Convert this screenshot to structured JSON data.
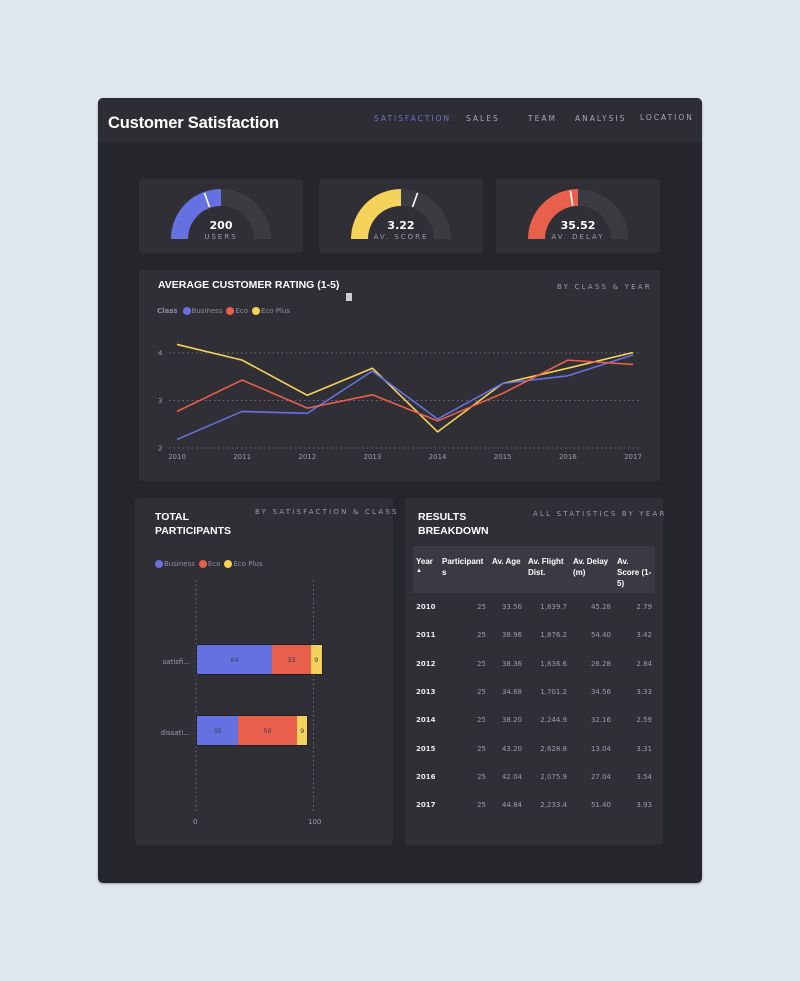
{
  "header": {
    "title": "Customer Satisfaction",
    "nav": [
      {
        "label": "SATISFACTION",
        "active": true
      },
      {
        "label": "SALES",
        "active": false
      },
      {
        "label": "TEAM",
        "active": false
      },
      {
        "label": "ANALYSIS",
        "active": false
      },
      {
        "label": "LOCATION",
        "active": false
      }
    ]
  },
  "colors": {
    "business": "#6571e0",
    "eco": "#e8604c",
    "eco_plus": "#f5d35a",
    "accent": "#6a75d9",
    "gauge_track": "#3b3c42"
  },
  "gauges": [
    {
      "value": "200",
      "label": "USERS",
      "color": "#6571e0",
      "fill_pct": 50,
      "marker_pct": 39
    },
    {
      "value": "3.22",
      "label": "AV. SCORE",
      "color": "#f5d35a",
      "fill_pct": 50,
      "marker_pct": 61
    },
    {
      "value": "35.52",
      "label": "AV. DELAY",
      "color": "#e8604c",
      "fill_pct": 50,
      "marker_pct": 45
    }
  ],
  "rating_chart": {
    "title": "AVERAGE CUSTOMER RATING (1-5)",
    "subtitle": "BY CLASS & YEAR",
    "legend_title": "Class",
    "legend": [
      "Business",
      "Eco",
      "Eco Plus"
    ]
  },
  "participants_chart": {
    "title_line1": "TOTAL",
    "title_line2": "PARTICIPANTS",
    "subtitle": "BY SATISFACTION & CLASS",
    "legend": [
      "Business",
      "Eco",
      "Eco Plus"
    ],
    "categories": [
      "satisfi...",
      "dissati..."
    ],
    "axis_ticks": [
      "0",
      "100"
    ]
  },
  "results": {
    "title_line1": "RESULTS",
    "title_line2": "BREAKDOWN",
    "subtitle": "ALL STATISTICS BY YEAR",
    "columns": [
      "Year",
      "Participant s",
      "Av. Age",
      "Av. Flight Dist.",
      "Av. Delay (m)",
      "Av. Score (1-5)"
    ],
    "sort_indicator": "▲",
    "rows": [
      [
        "2010",
        "25",
        "33.56",
        "1,839.7",
        "45.28",
        "2.79"
      ],
      [
        "2011",
        "25",
        "38.96",
        "1,876.2",
        "54.40",
        "3.42"
      ],
      [
        "2012",
        "25",
        "38.36",
        "1,836.6",
        "26.28",
        "2.84"
      ],
      [
        "2013",
        "25",
        "34.68",
        "1,701.2",
        "34.56",
        "3.33"
      ],
      [
        "2014",
        "25",
        "38.20",
        "2,244.9",
        "32.16",
        "2.59"
      ],
      [
        "2015",
        "25",
        "43.20",
        "2,628.8",
        "13.04",
        "3.31"
      ],
      [
        "2016",
        "25",
        "42.04",
        "2,075.9",
        "27.04",
        "3.54"
      ],
      [
        "2017",
        "25",
        "44.84",
        "2,233.4",
        "51.40",
        "3.93"
      ]
    ]
  },
  "chart_data": [
    {
      "type": "line",
      "title": "AVERAGE CUSTOMER RATING (1-5)",
      "subtitle": "BY CLASS & YEAR",
      "xlabel": "",
      "ylabel": "",
      "x": [
        "2010",
        "2011",
        "2012",
        "2013",
        "2014",
        "2015",
        "2016",
        "2017"
      ],
      "yticks": [
        2,
        3,
        4
      ],
      "ylim": [
        2,
        4.2
      ],
      "grid": true,
      "legend_position": "top-left",
      "series": [
        {
          "name": "Business",
          "color": "#6571e0",
          "values": [
            2.18,
            2.77,
            2.73,
            3.62,
            2.61,
            3.36,
            3.52,
            3.96
          ]
        },
        {
          "name": "Eco",
          "color": "#e8604c",
          "values": [
            2.77,
            3.43,
            2.84,
            3.12,
            2.57,
            3.15,
            3.85,
            3.76
          ]
        },
        {
          "name": "Eco Plus",
          "color": "#f5d35a",
          "values": [
            4.18,
            3.85,
            3.11,
            3.68,
            2.34,
            3.36,
            3.68,
            4.01
          ]
        }
      ]
    },
    {
      "type": "bar",
      "orientation": "horizontal",
      "stacked": true,
      "title": "TOTAL PARTICIPANTS",
      "subtitle": "BY SATISFACTION & CLASS",
      "categories": [
        "satisfi...",
        "dissati..."
      ],
      "xticks": [
        0,
        100
      ],
      "xlim": [
        0,
        110
      ],
      "grid": true,
      "legend_position": "top-left",
      "series": [
        {
          "name": "Business",
          "color": "#6571e0",
          "values": [
            64,
            35
          ]
        },
        {
          "name": "Eco",
          "color": "#e8604c",
          "values": [
            33,
            50
          ]
        },
        {
          "name": "Eco Plus",
          "color": "#f5d35a",
          "values": [
            9,
            9
          ]
        }
      ]
    }
  ]
}
